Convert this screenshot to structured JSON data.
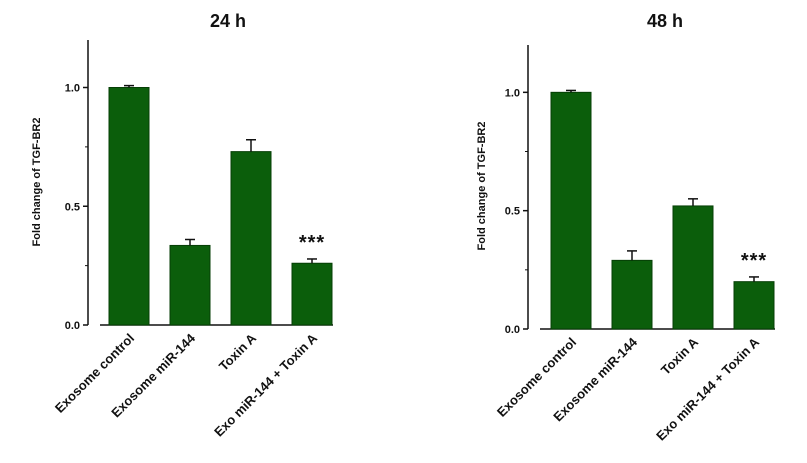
{
  "chart_data": [
    {
      "type": "bar",
      "title": "24 h",
      "ylabel": "Fold change of TGF-BR2",
      "xlabel": "",
      "categories": [
        "Exosome control",
        "Exosome miR-144",
        "Toxin A",
        "Exo miR-144 + Toxin A"
      ],
      "values": [
        1.0,
        0.335,
        0.73,
        0.26
      ],
      "errors": [
        0.008,
        0.025,
        0.05,
        0.018
      ],
      "annotations": [
        "",
        "",
        "",
        "***"
      ],
      "ylim": [
        0,
        1.2
      ],
      "yticks": [
        "0.0",
        "0.5",
        "1.0"
      ],
      "bar_color": "#0b5e0b",
      "grid": false
    },
    {
      "type": "bar",
      "title": "48 h",
      "ylabel": "Fold change of TGF-BR2",
      "xlabel": "",
      "categories": [
        "Exosome control",
        "Exosome miR-144",
        "Toxin A",
        "Exo miR-144 + Toxin A"
      ],
      "values": [
        1.0,
        0.29,
        0.52,
        0.2
      ],
      "errors": [
        0.008,
        0.04,
        0.03,
        0.02
      ],
      "annotations": [
        "",
        "",
        "",
        "***"
      ],
      "ylim": [
        0,
        1.2
      ],
      "yticks": [
        "0.0",
        "0.5",
        "1.0"
      ],
      "bar_color": "#0b5e0b",
      "grid": false
    }
  ]
}
